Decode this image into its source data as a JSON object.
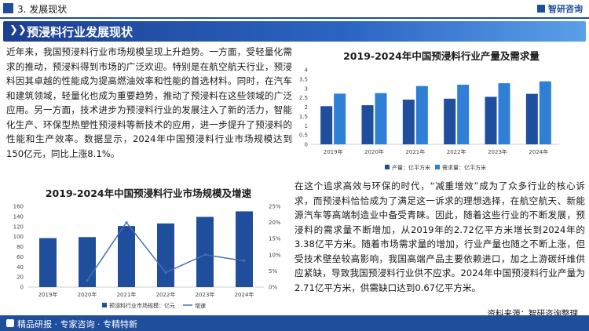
{
  "header": {
    "section_label": "3. 发展现状",
    "logo_text": "智研咨询"
  },
  "banner": {
    "chevrons": "❯❯",
    "title": "预浸料行业发展现状"
  },
  "paragraph_1": "近年来，我国预浸料行业市场规模呈现上升趋势。一方面，受轻量化需求的推动，预浸料得到市场的广泛欢迎。特别是在航空航天行业，预浸料因其卓越的性能成为提高燃油效率和性能的首选材料。同时，在汽车和建筑领域，轻量化也成为重要趋势，推动了预浸料在这些领域的广泛应用。另一方面，技术进步为预浸料行业的发展注入了新的活力，智能化生产、环保型热塑性预浸料等新技术的应用，进一步提升了预浸料的性能和生产效率。数据显示，2024年中国预浸料行业市场规模达到150亿元，同比上涨8.1%。",
  "paragraph_2": "在这个追求高效与环保的时代，“减重增效”成为了众多行业的核心诉求，而预浸料恰恰成为了满足这一诉求的理想选择，在航空航天、新能源汽车等高端制造业中备受青睐。因此，随着这些行业的不断发展，预浸料的需求量不断增加，从2019年的2.72亿平方米增长到2024年的3.38亿平方米。随着市场需求量的增加，行业产量也随之不断上涨，但受技术壁垒较高影响，我国高端产品主要依赖进口，加之上游碳纤维供应紧缺，导致我国预浸料行业供不应求。2024年中国预浸料行业产量为2.71亿平方米，供需缺口达到0.67亿平方米。",
  "chart_data": [
    {
      "type": "bar",
      "title": "2019-2024年中国预浸料行业产量及需求量",
      "categories": [
        "2019年",
        "2020年",
        "2021年",
        "2022年",
        "2023年",
        "2024年"
      ],
      "series": [
        {
          "name": "产量：亿平方米",
          "values": [
            2.05,
            2.1,
            2.4,
            2.45,
            2.55,
            2.71
          ],
          "color": "#1f4e9c"
        },
        {
          "name": "需求量：亿平方米",
          "values": [
            2.72,
            2.75,
            3.13,
            3.2,
            3.28,
            3.38
          ],
          "color": "#2f7fd6"
        }
      ],
      "ylim": [
        0,
        4
      ],
      "yticks": [
        "0",
        "0.5",
        "1",
        "1.5",
        "2",
        "2.5",
        "3",
        "3.5",
        "4"
      ],
      "legend": "bottom",
      "grid": false
    },
    {
      "type": "bar",
      "title": "2019-2024年中国预浸料行业市场规模及增速",
      "categories": [
        "2019年",
        "2020年",
        "2021年",
        "2022年",
        "2023年",
        "2024年"
      ],
      "series": [
        {
          "name": "预浸料行业市场规模：亿元",
          "values": [
            97,
            99,
            121,
            126,
            139,
            150
          ],
          "color": "#1f4e9c",
          "axis": "left"
        },
        {
          "name": "增速",
          "values": [
            null,
            2,
            20,
            4.5,
            10,
            8.1
          ],
          "color": "#1f4e9c",
          "axis": "right",
          "kind": "line"
        }
      ],
      "ylim": [
        0,
        160
      ],
      "yticks": [
        "0",
        "20",
        "40",
        "60",
        "80",
        "100",
        "120",
        "140",
        "160"
      ],
      "y2lim": [
        0,
        25
      ],
      "y2ticks": [
        "0%",
        "5%",
        "10%",
        "15%",
        "20%",
        "25%"
      ],
      "legend": "bottom",
      "grid": false
    }
  ],
  "footer": {
    "slogan": "精品研报 · 专家咨询 · 专精特新",
    "source": "资料来源：智研咨询整理"
  }
}
